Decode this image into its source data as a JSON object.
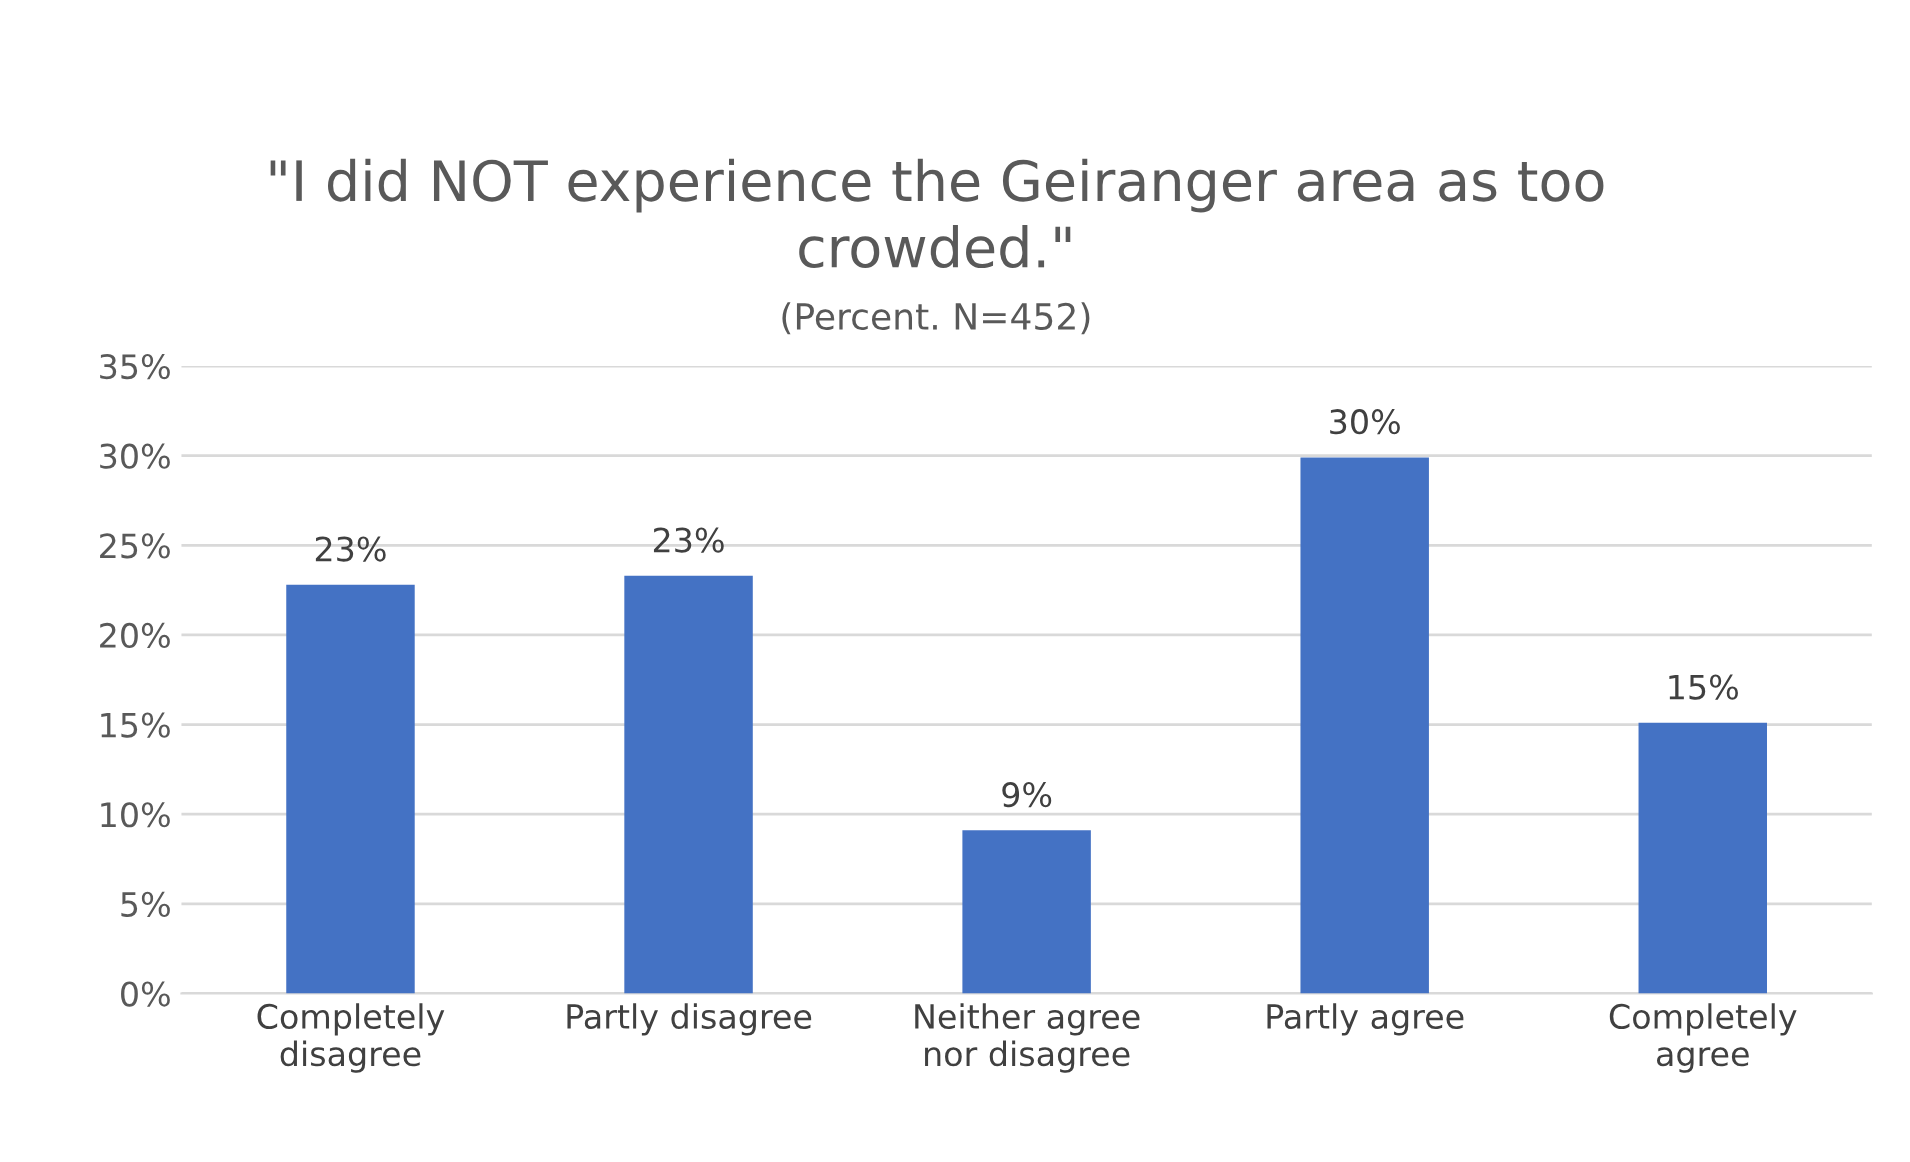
{
  "chart_data": {
    "type": "bar",
    "title": "\"I did NOT experience the Geiranger area as too\ncrowded.\"",
    "subtitle": "(Percent. N=452)",
    "categories": [
      "Completely\ndisagree",
      "Partly disagree",
      "Neither agree\nnor disagree",
      "Partly agree",
      "Completely\nagree"
    ],
    "values": [
      22.8,
      23.3,
      9.1,
      29.9,
      15.1
    ],
    "value_labels": [
      "23%",
      "23%",
      "9%",
      "30%",
      "15%"
    ],
    "color": "#4472c4",
    "ylim": [
      0,
      35
    ],
    "yticks": [
      {
        "value": 0,
        "label": "0%"
      },
      {
        "value": 5,
        "label": "5%"
      },
      {
        "value": 10,
        "label": "10%"
      },
      {
        "value": 15,
        "label": "15%"
      },
      {
        "value": 20,
        "label": "20%"
      },
      {
        "value": 25,
        "label": "25%"
      },
      {
        "value": 30,
        "label": "30%"
      },
      {
        "value": 35,
        "label": "35%"
      }
    ],
    "grid": "y",
    "legend": false
  }
}
